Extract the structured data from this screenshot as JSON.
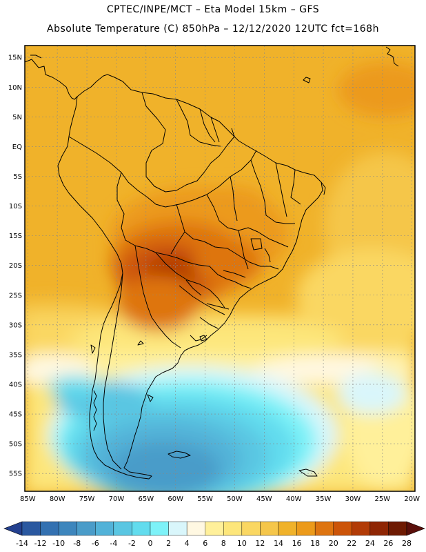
{
  "header": {
    "line1": "CPTEC/INPE/MCT –  Eta Model 15km – GFS",
    "line2": "Absolute Temperature (C) 850hPa – 12/12/2020 12UTC fct=168h"
  },
  "map": {
    "lat_labels": [
      "15N",
      "10N",
      "5N",
      "EQ",
      "5S",
      "10S",
      "15S",
      "20S",
      "25S",
      "30S",
      "35S",
      "40S",
      "45S",
      "50S",
      "55S"
    ],
    "lon_labels": [
      "85W",
      "80W",
      "75W",
      "70W",
      "65W",
      "60W",
      "55W",
      "50W",
      "45W",
      "40W",
      "35W",
      "30W",
      "25W",
      "20W"
    ],
    "lat_values": [
      15,
      10,
      5,
      0,
      -5,
      -10,
      -15,
      -20,
      -25,
      -30,
      -35,
      -40,
      -45,
      -50,
      -55
    ],
    "lon_values": [
      -85,
      -80,
      -75,
      -70,
      -65,
      -60,
      -55,
      -50,
      -45,
      -40,
      -35,
      -30,
      -25,
      -20
    ],
    "extent": {
      "lon_min": -85.5,
      "lon_max": -19.5,
      "lat_min": -58,
      "lat_max": 17
    }
  },
  "colorbar": {
    "labels": [
      "-14",
      "-12",
      "-10",
      "-8",
      "-6",
      "-4",
      "-2",
      "0",
      "2",
      "4",
      "6",
      "8",
      "10",
      "12",
      "14",
      "16",
      "18",
      "20",
      "22",
      "24",
      "26",
      "28"
    ],
    "colors": [
      "#23408f",
      "#2a58a0",
      "#3371b1",
      "#3d86bd",
      "#4a9cc9",
      "#52b2d8",
      "#5ac6e2",
      "#62dcee",
      "#7df2f8",
      "#d9f6fb",
      "#fff8e2",
      "#fff09a",
      "#fde67a",
      "#fad762",
      "#f5c64a",
      "#f0b22a",
      "#ec9a1a",
      "#de7410",
      "#cc5408",
      "#b23b06",
      "#8f2604",
      "#6e1a02",
      "#5a0f0a"
    ]
  }
}
